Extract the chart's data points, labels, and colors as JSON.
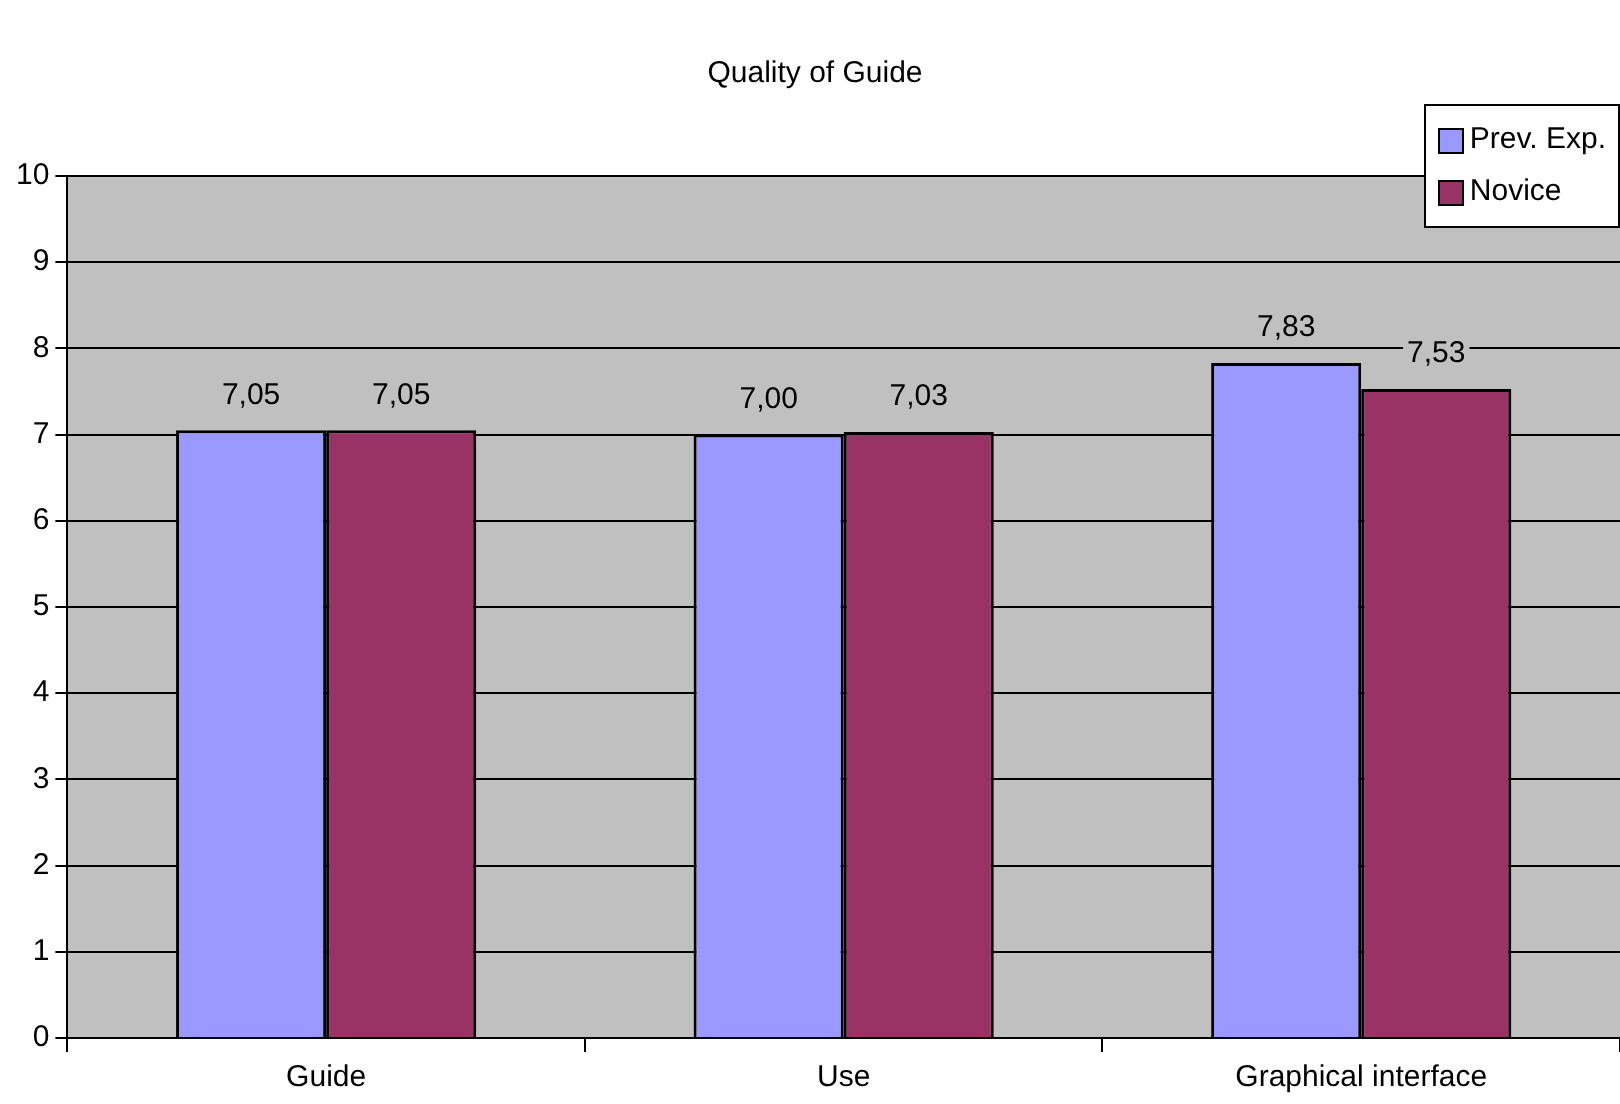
{
  "chart_data": {
    "type": "bar",
    "title": "Quality of Guide",
    "categories": [
      "Guide",
      "Use",
      "Graphical interface"
    ],
    "series": [
      {
        "name": "Prev. Exp.",
        "color": "#9999ff",
        "values": [
          7.05,
          7.0,
          7.83
        ],
        "value_labels": [
          "7,05",
          "7,00",
          "7,83"
        ]
      },
      {
        "name": "Novice",
        "color": "#993366",
        "values": [
          7.05,
          7.03,
          7.53
        ],
        "value_labels": [
          "7,05",
          "7,03",
          "7,53"
        ]
      }
    ],
    "ylim": [
      0,
      10
    ],
    "yticks": [
      0,
      1,
      2,
      3,
      4,
      5,
      6,
      7,
      8,
      9,
      10
    ],
    "grid": "y",
    "legend": "top right"
  }
}
